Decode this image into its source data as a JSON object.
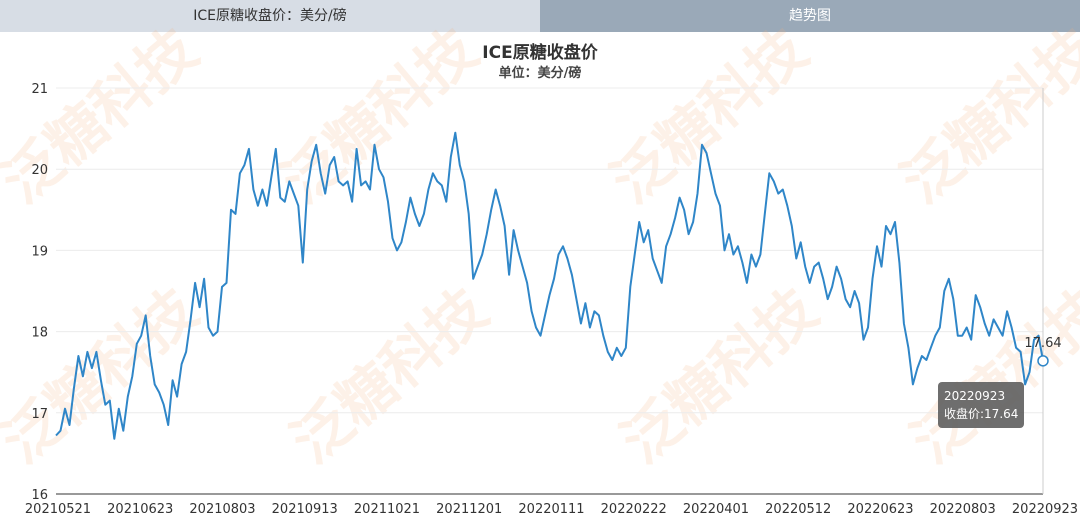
{
  "tabs": [
    {
      "label": "ICE原糖收盘价：美分/磅",
      "active": false
    },
    {
      "label": "趋势图",
      "active": true
    }
  ],
  "watermark": "泛糖科技",
  "tooltip": {
    "date": "20220923",
    "label": "收盘价:17.64"
  },
  "last_value_label": "17.64",
  "chart_data": {
    "type": "line",
    "title": "ICE原糖收盘价",
    "subtitle": "单位：美分/磅",
    "ylim": [
      16,
      21
    ],
    "yticks": [
      16,
      17,
      18,
      19,
      20,
      21
    ],
    "xtick_labels": [
      "20210521",
      "20210623",
      "20210803",
      "20210913",
      "20211021",
      "20211201",
      "20220111",
      "20220222",
      "20220401",
      "20220512",
      "20220623",
      "20220803",
      "20220923"
    ],
    "grid": true,
    "line_color": "#2f86c8",
    "series": [
      {
        "x_start": "20210521",
        "x_end": "20220923",
        "values": [
          16.72,
          16.78,
          17.05,
          16.85,
          17.3,
          17.7,
          17.45,
          17.75,
          17.55,
          17.75,
          17.4,
          17.1,
          17.15,
          16.68,
          17.05,
          16.78,
          17.2,
          17.45,
          17.85,
          17.95,
          18.2,
          17.7,
          17.35,
          17.25,
          17.1,
          16.85,
          17.4,
          17.2,
          17.6,
          17.75,
          18.15,
          18.6,
          18.3,
          18.65,
          18.05,
          17.95,
          18.0,
          18.55,
          18.6,
          19.5,
          19.45,
          19.95,
          20.05,
          20.25,
          19.75,
          19.55,
          19.75,
          19.55,
          19.9,
          20.25,
          19.65,
          19.6,
          19.85,
          19.7,
          19.55,
          18.85,
          19.75,
          20.1,
          20.3,
          19.95,
          19.7,
          20.05,
          20.15,
          19.85,
          19.8,
          19.85,
          19.6,
          20.25,
          19.8,
          19.85,
          19.75,
          20.3,
          20.0,
          19.9,
          19.6,
          19.15,
          19.0,
          19.1,
          19.35,
          19.65,
          19.45,
          19.3,
          19.45,
          19.75,
          19.95,
          19.85,
          19.8,
          19.6,
          20.15,
          20.45,
          20.05,
          19.85,
          19.45,
          18.65,
          18.8,
          18.95,
          19.2,
          19.5,
          19.75,
          19.55,
          19.3,
          18.7,
          19.25,
          19.0,
          18.8,
          18.6,
          18.25,
          18.05,
          17.95,
          18.2,
          18.45,
          18.65,
          18.95,
          19.05,
          18.9,
          18.7,
          18.4,
          18.1,
          18.35,
          18.05,
          18.25,
          18.2,
          17.95,
          17.75,
          17.65,
          17.8,
          17.7,
          17.8,
          18.55,
          18.95,
          19.35,
          19.1,
          19.25,
          18.9,
          18.75,
          18.6,
          19.05,
          19.2,
          19.4,
          19.65,
          19.5,
          19.2,
          19.35,
          19.7,
          20.3,
          20.2,
          19.95,
          19.7,
          19.55,
          19.0,
          19.2,
          18.95,
          19.05,
          18.85,
          18.6,
          18.95,
          18.8,
          18.95,
          19.45,
          19.95,
          19.85,
          19.7,
          19.75,
          19.55,
          19.3,
          18.9,
          19.1,
          18.8,
          18.6,
          18.8,
          18.85,
          18.65,
          18.4,
          18.55,
          18.8,
          18.65,
          18.4,
          18.3,
          18.5,
          18.35,
          17.9,
          18.05,
          18.65,
          19.05,
          18.8,
          19.3,
          19.2,
          19.35,
          18.85,
          18.1,
          17.8,
          17.35,
          17.55,
          17.7,
          17.65,
          17.8,
          17.95,
          18.05,
          18.5,
          18.65,
          18.4,
          17.95,
          17.95,
          18.05,
          17.9,
          18.45,
          18.3,
          18.1,
          17.95,
          18.15,
          18.05,
          17.95,
          18.25,
          18.05,
          17.8,
          17.75,
          17.35,
          17.5,
          17.9,
          17.95,
          17.64
        ]
      }
    ]
  }
}
